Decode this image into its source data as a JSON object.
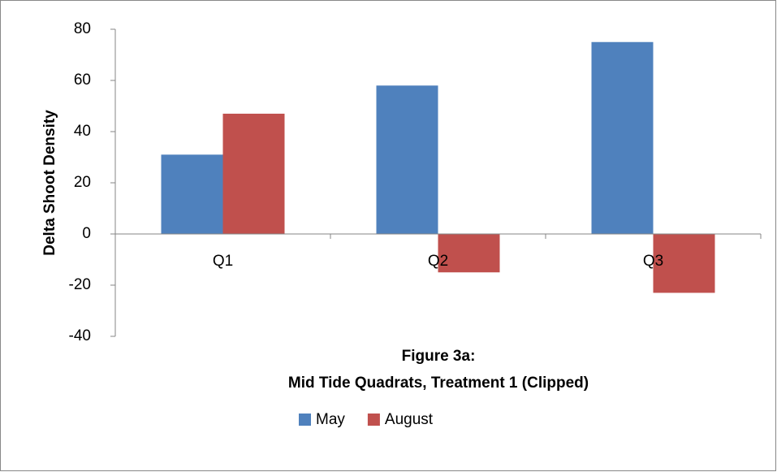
{
  "chart_data": {
    "type": "bar",
    "title": [
      "Figure 3a:",
      "Mid Tide Quadrats, Treatment 1 (Clipped)"
    ],
    "y_label": "Delta Shoot Density",
    "categories": [
      "Q1",
      "Q2",
      "Q3"
    ],
    "series": [
      {
        "name": "May",
        "color": "#4f81bd",
        "values": [
          31,
          58,
          75
        ]
      },
      {
        "name": "August",
        "color": "#c0504d",
        "values": [
          47,
          -15,
          -23
        ]
      }
    ],
    "ylim": [
      -40,
      80
    ],
    "yticks": [
      -40,
      -20,
      0,
      20,
      40,
      60,
      80
    ],
    "legend": "bottom"
  }
}
